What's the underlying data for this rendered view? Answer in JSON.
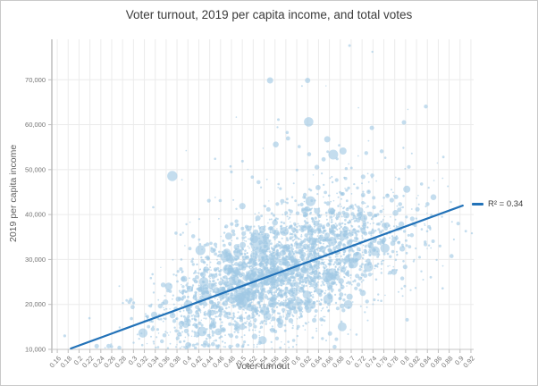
{
  "colors": {
    "point": "#9fc8e4",
    "point_opacity": 0.62,
    "trend": "#2272b8",
    "grid": "#ebebeb",
    "axis": "#9c9c9c",
    "axis_bottom": "#c6c6c6",
    "tick_mark": "#bdbdbd",
    "tick_label": "#737373",
    "title": "#3b3b3b",
    "axis_title": "#5f5f5f",
    "border": "#c9c9c9"
  },
  "chart_data": {
    "type": "scatter",
    "title": "Voter turnout, 2019 per capita income, and total votes",
    "xlabel": "Voter turnout",
    "ylabel": "2019 per capita income",
    "bubble_size_encodes": "total votes",
    "grid": true,
    "xlim": [
      0.15,
      0.925
    ],
    "ylim": [
      10000,
      79000
    ],
    "x_tick_values": [
      0.16,
      0.18,
      0.2,
      0.22,
      0.24,
      0.26,
      0.28,
      0.3,
      0.32,
      0.34,
      0.36,
      0.38,
      0.4,
      0.42,
      0.44,
      0.46,
      0.48,
      0.5,
      0.52,
      0.54,
      0.56,
      0.58,
      0.6,
      0.62,
      0.64,
      0.66,
      0.68,
      0.7,
      0.72,
      0.74,
      0.76,
      0.78,
      0.8,
      0.82,
      0.84,
      0.86,
      0.88,
      0.9,
      0.92
    ],
    "x_tick_labels": [
      "0.16",
      "0.18",
      "0.2",
      "0.22",
      "0.24",
      "0.26",
      "0.28",
      "0.3",
      "0.32",
      "0.34",
      "0.36",
      "0.38",
      "0.4",
      "0.42",
      "0.44",
      "0.46",
      "0.48",
      "0.5",
      "0.52",
      "0.54",
      "0.56",
      "0.58",
      "0.6",
      "0.62",
      "0.64",
      "0.66",
      "0.68",
      "0.7",
      "0.72",
      "0.74",
      "0.76",
      "0.78",
      "0.8",
      "0.82",
      "0.84",
      "0.86",
      "0.88",
      "0.9",
      "0.92"
    ],
    "y_tick_values": [
      10000,
      20000,
      30000,
      40000,
      50000,
      60000,
      70000
    ],
    "y_tick_labels": [
      "10,000",
      "20,000",
      "30,000",
      "40,000",
      "50,000",
      "60,000",
      "70,000"
    ],
    "legend": {
      "label": "R² = 0.34",
      "position": "right-of-trend-line-end"
    },
    "trend_line": {
      "r_squared": 0.34,
      "x1": 0.185,
      "y1": 10200,
      "x2": 0.905,
      "y2": 42000,
      "slope": 44150,
      "intercept": 2030
    },
    "featured_points": [
      [
        0.533,
        33500,
        11
      ],
      [
        0.577,
        36250,
        5
      ],
      [
        0.492,
        31500,
        5
      ],
      [
        0.475,
        35200,
        4
      ],
      [
        0.667,
        53350,
        5.5
      ],
      [
        0.685,
        54150,
        4
      ],
      [
        0.656,
        56750,
        3.5
      ],
      [
        0.551,
        69850,
        3.5
      ],
      [
        0.62,
        69850,
        3
      ],
      [
        0.723,
        39230,
        4
      ],
      [
        0.697,
        77610,
        1.5
      ],
      [
        0.739,
        76220,
        1.2
      ],
      [
        0.797,
        60500,
        2.5
      ],
      [
        0.738,
        59300,
        2.5
      ]
    ],
    "cloud": {
      "seed": 1337,
      "count": 3000,
      "x_mean": 0.575,
      "x_sd": 0.112,
      "x_min": 0.168,
      "x_max": 0.922,
      "noise_sd": 6300,
      "tail_p": 0.045,
      "tail_scale": 11000,
      "y_floor": 10250,
      "y_ceiling": 78000
    }
  }
}
